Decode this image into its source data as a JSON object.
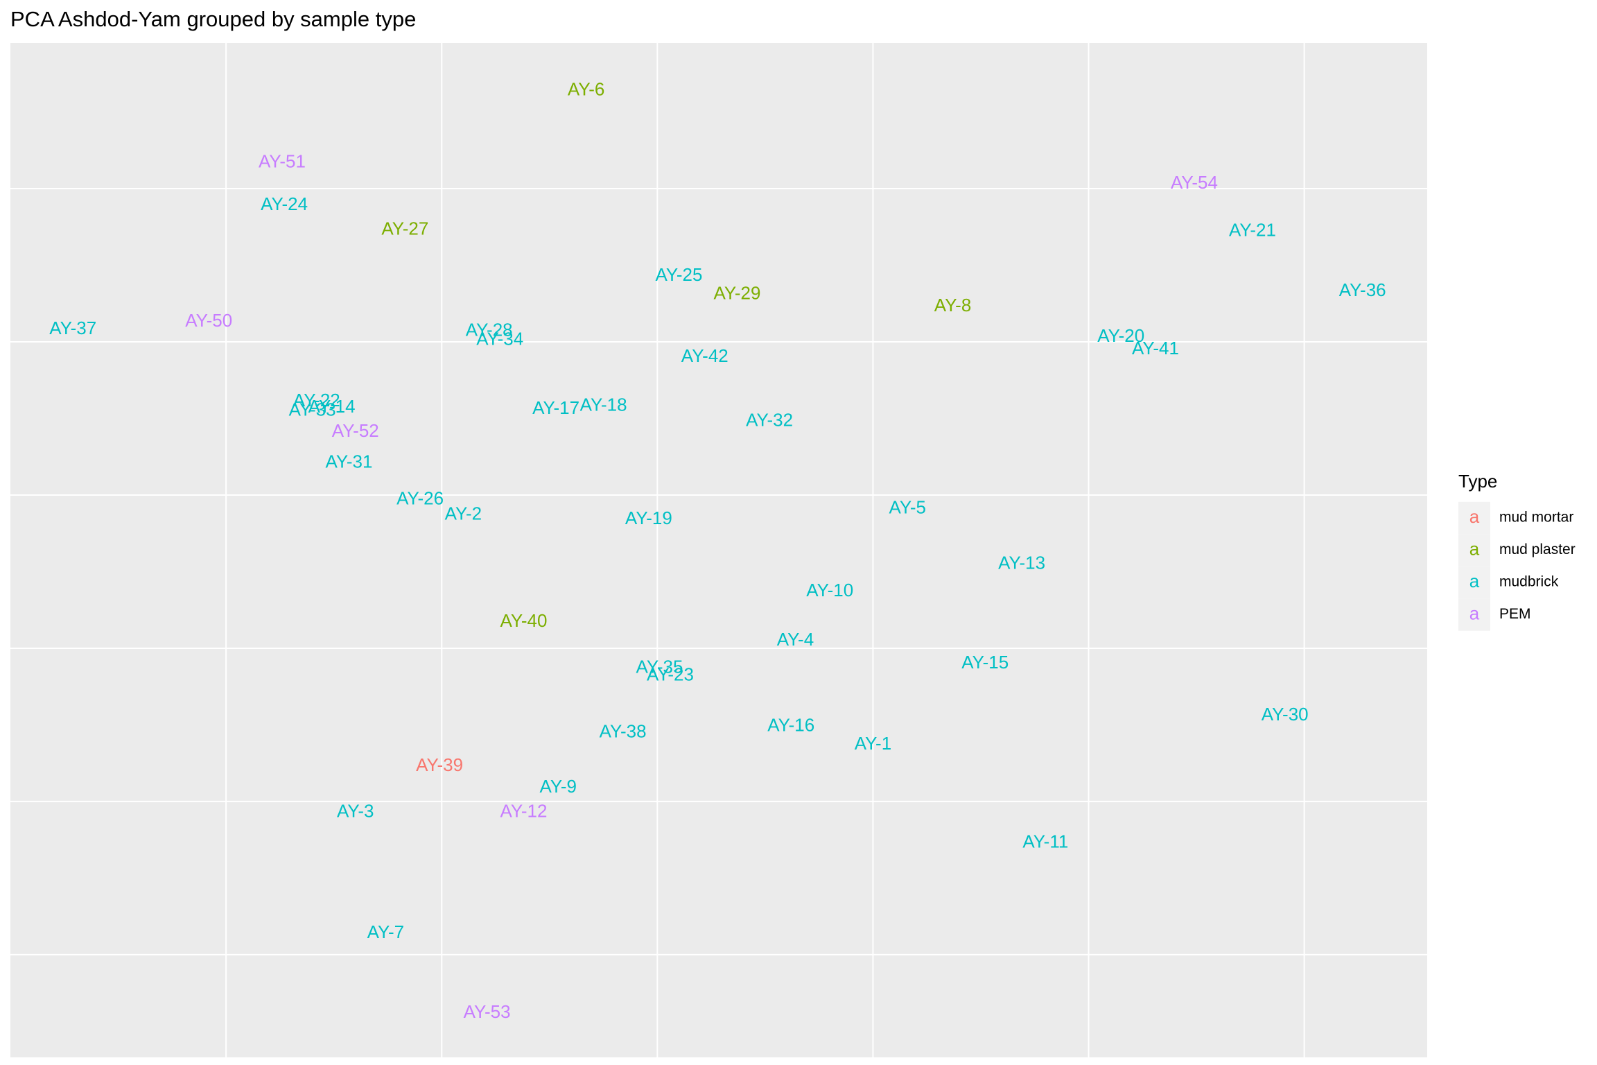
{
  "chart_data": {
    "type": "scatter",
    "title": "PCA Ashdod-Yam grouped by sample type",
    "xlim": [
      -3.0,
      3.57
    ],
    "ylim": [
      -3.67,
      2.95
    ],
    "xticks": [
      -2,
      -1,
      0,
      1,
      2,
      3
    ],
    "yticks": [
      -3,
      -2,
      -1,
      0,
      1,
      2
    ],
    "grid": true,
    "legend_title": "Type",
    "legend_key_glyph": "a",
    "legend_position": "right",
    "series": [
      {
        "name": "mud mortar",
        "color": "#F8766D",
        "labels": [
          "AY-39"
        ],
        "x": [
          -1.01
        ],
        "values": [
          -1.77
        ]
      },
      {
        "name": "mud plaster",
        "color": "#7CAE00",
        "labels": [
          "AY-6",
          "AY-27",
          "AY-29",
          "AY-8",
          "AY-40"
        ],
        "x": [
          -0.33,
          -1.17,
          0.37,
          1.37,
          -0.62
        ],
        "values": [
          2.64,
          1.73,
          1.31,
          1.23,
          -0.83
        ]
      },
      {
        "name": "mudbrick",
        "color": "#00BFC4",
        "labels": [
          "AY-24",
          "AY-21",
          "AY-36",
          "AY-25",
          "AY-37",
          "AY-28",
          "AY-34",
          "AY-20",
          "AY-41",
          "AY-42",
          "AY-22",
          "AY-33",
          "AY-14",
          "AY-17",
          "AY-18",
          "AY-32",
          "AY-31",
          "AY-26",
          "AY-2",
          "AY-19",
          "AY-5",
          "AY-13",
          "AY-10",
          "AY-4",
          "AY-35",
          "AY-23",
          "AY-15",
          "AY-30",
          "AY-38",
          "AY-16",
          "AY-1",
          "AY-9",
          "AY-3",
          "AY-11",
          "AY-7"
        ],
        "x": [
          -1.73,
          2.76,
          3.27,
          0.1,
          -2.71,
          -0.78,
          -0.73,
          2.15,
          2.31,
          0.22,
          -1.58,
          -1.6,
          -1.51,
          -0.47,
          -0.25,
          0.52,
          -1.43,
          -1.1,
          -0.9,
          -0.04,
          1.16,
          1.69,
          0.8,
          0.64,
          0.01,
          0.06,
          1.52,
          2.91,
          -0.16,
          0.62,
          1.0,
          -0.46,
          -1.4,
          1.8,
          -1.26
        ],
        "values": [
          1.89,
          1.72,
          1.33,
          1.43,
          1.08,
          1.07,
          1.01,
          1.03,
          0.95,
          0.9,
          0.61,
          0.55,
          0.57,
          0.56,
          0.58,
          0.48,
          0.21,
          -0.03,
          -0.13,
          -0.16,
          -0.09,
          -0.45,
          -0.63,
          -0.95,
          -1.13,
          -1.18,
          -1.1,
          -1.44,
          -1.55,
          -1.51,
          -1.63,
          -1.91,
          -2.07,
          -2.27,
          -2.86
        ]
      },
      {
        "name": "PEM",
        "color": "#C77CFF",
        "labels": [
          "AY-51",
          "AY-54",
          "AY-50",
          "AY-52",
          "AY-12",
          "AY-53"
        ],
        "x": [
          -1.74,
          2.49,
          -2.08,
          -1.4,
          -0.62,
          -0.79
        ],
        "values": [
          2.17,
          2.03,
          1.13,
          0.41,
          -2.07,
          -3.38
        ]
      }
    ]
  }
}
